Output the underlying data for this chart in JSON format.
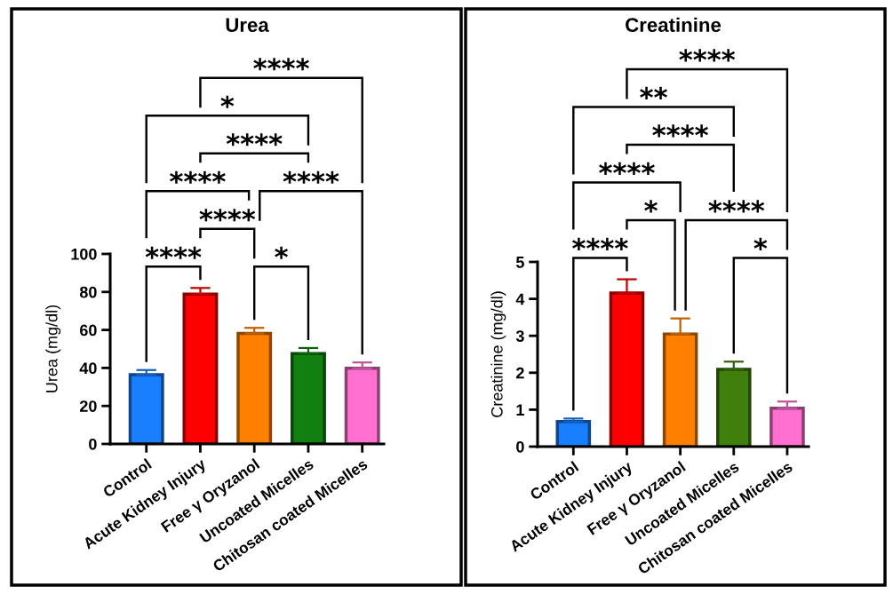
{
  "chart_data": [
    {
      "type": "bar",
      "title": "Urea",
      "ylabel": "Urea (mg/dl)",
      "categories": [
        "Control",
        "Acute Kidney Injury",
        "Free γ Oryzanol",
        "Uncoated Micelles",
        "Chitosan coated Micelles"
      ],
      "values": [
        36.4,
        78.9,
        58.2,
        47.6,
        39.8
      ],
      "errors": [
        [
          36.4,
          38.9
        ],
        [
          78.9,
          82.1
        ],
        [
          58.2,
          61.1
        ],
        [
          47.6,
          50.5
        ],
        [
          39.8,
          42.9
        ]
      ],
      "colors": [
        "#1a7fff",
        "#ff0000",
        "#ff8000",
        "#118011",
        "#ff70d0"
      ],
      "ylim": [
        0,
        100
      ],
      "yticks": [
        0,
        20,
        40,
        60,
        80,
        100
      ],
      "annotations": [
        "****",
        "*",
        "****",
        "****",
        "****",
        "****",
        "****",
        "*"
      ]
    },
    {
      "type": "bar",
      "title": "Creatinine",
      "ylabel": "Creatinine (mg/dl)",
      "categories": [
        "Control",
        "Acute Kidney Injury",
        "Free γ Oryzanol",
        "Uncoated Micelles",
        "Chitosan coated Micelles"
      ],
      "values": [
        0.68,
        4.16,
        3.05,
        2.09,
        1.04
      ],
      "errors": [
        [
          0.68,
          0.76
        ],
        [
          4.16,
          4.53
        ],
        [
          3.05,
          3.47
        ],
        [
          2.09,
          2.3
        ],
        [
          1.04,
          1.22
        ]
      ],
      "colors": [
        "#1a7fff",
        "#ff0000",
        "#ff8000",
        "#3f800d",
        "#ff70d0"
      ],
      "ylim": [
        0,
        5
      ],
      "yticks": [
        0,
        1,
        2,
        3,
        4,
        5
      ],
      "annotations": [
        "****",
        "**",
        "****",
        "****",
        "*",
        "****",
        "****",
        "*"
      ]
    }
  ]
}
